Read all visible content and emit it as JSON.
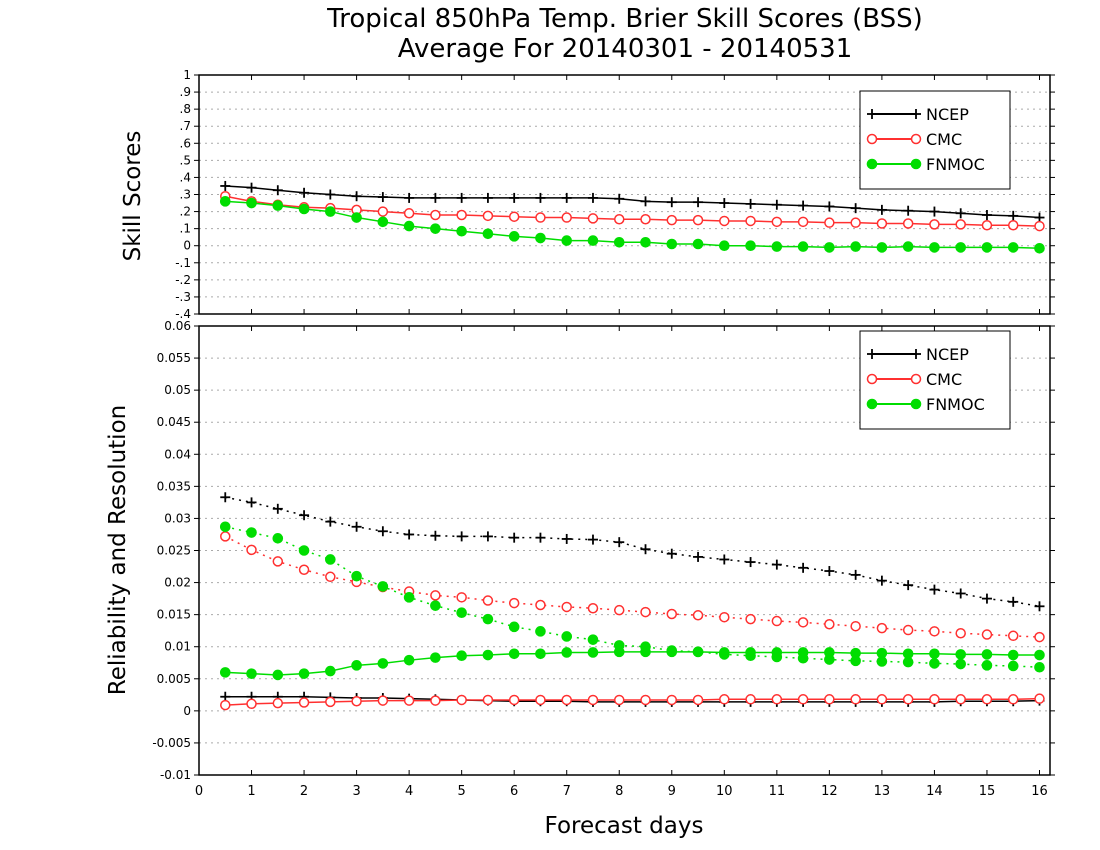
{
  "title_line1": "Tropical 850hPa Temp. Brier Skill Scores (BSS)",
  "title_line2": "Average For 20140301 - 20140531",
  "colors": {
    "NCEP": "#000000",
    "CMC": "#ff3030",
    "FNMOC": "#00dd00"
  },
  "chart_data": [
    {
      "type": "line",
      "ylabel": "Skill Scores",
      "xlabel": "",
      "xlim": [
        0,
        16.2
      ],
      "ylim": [
        -0.4,
        1
      ],
      "yticks": [
        -0.4,
        -0.3,
        -0.2,
        -0.1,
        0,
        0.1,
        0.2,
        0.3,
        0.4,
        0.5,
        0.6,
        0.7,
        0.8,
        0.9,
        1
      ],
      "grid": true,
      "legend": "top-right",
      "legend_entries": [
        "NCEP",
        "CMC",
        "FNMOC"
      ],
      "x": [
        0.5,
        1,
        1.5,
        2,
        2.5,
        3,
        3.5,
        4,
        4.5,
        5,
        5.5,
        6,
        6.5,
        7,
        7.5,
        8,
        8.5,
        9,
        9.5,
        10,
        10.5,
        11,
        11.5,
        12,
        12.5,
        13,
        13.5,
        14,
        14.5,
        15,
        15.5,
        16
      ],
      "series": [
        {
          "name": "NCEP",
          "marker": "plus",
          "style": "solid",
          "values": [
            0.35,
            0.34,
            0.325,
            0.31,
            0.3,
            0.29,
            0.285,
            0.28,
            0.28,
            0.28,
            0.28,
            0.28,
            0.28,
            0.28,
            0.28,
            0.275,
            0.26,
            0.255,
            0.255,
            0.25,
            0.245,
            0.24,
            0.235,
            0.23,
            0.22,
            0.21,
            0.205,
            0.2,
            0.19,
            0.18,
            0.175,
            0.165
          ]
        },
        {
          "name": "CMC",
          "marker": "open-circle",
          "style": "solid",
          "values": [
            0.29,
            0.26,
            0.24,
            0.225,
            0.22,
            0.21,
            0.2,
            0.19,
            0.18,
            0.18,
            0.175,
            0.17,
            0.165,
            0.165,
            0.16,
            0.155,
            0.155,
            0.15,
            0.15,
            0.145,
            0.145,
            0.14,
            0.14,
            0.135,
            0.135,
            0.13,
            0.13,
            0.125,
            0.125,
            0.12,
            0.12,
            0.115
          ]
        },
        {
          "name": "FNMOC",
          "marker": "filled-circle",
          "style": "solid",
          "values": [
            0.26,
            0.25,
            0.235,
            0.215,
            0.2,
            0.165,
            0.14,
            0.115,
            0.1,
            0.085,
            0.07,
            0.055,
            0.045,
            0.03,
            0.03,
            0.02,
            0.02,
            0.01,
            0.01,
            0.0,
            0.0,
            -0.005,
            -0.005,
            -0.01,
            -0.005,
            -0.01,
            -0.005,
            -0.01,
            -0.01,
            -0.01,
            -0.01,
            -0.015
          ]
        }
      ]
    },
    {
      "type": "line",
      "ylabel": "Reliability and Resolution",
      "xlabel": "Forecast days",
      "xlim": [
        0,
        16.2
      ],
      "ylim": [
        -0.01,
        0.06
      ],
      "yticks": [
        -0.01,
        -0.005,
        0,
        0.005,
        0.01,
        0.015,
        0.02,
        0.025,
        0.03,
        0.035,
        0.04,
        0.045,
        0.05,
        0.055,
        0.06
      ],
      "xticks": [
        0,
        1,
        2,
        3,
        4,
        5,
        6,
        7,
        8,
        9,
        10,
        11,
        12,
        13,
        14,
        15,
        16
      ],
      "grid": true,
      "legend": "top-right",
      "legend_entries": [
        "NCEP",
        "CMC",
        "FNMOC"
      ],
      "x": [
        0.5,
        1,
        1.5,
        2,
        2.5,
        3,
        3.5,
        4,
        4.5,
        5,
        5.5,
        6,
        6.5,
        7,
        7.5,
        8,
        8.5,
        9,
        9.5,
        10,
        10.5,
        11,
        11.5,
        12,
        12.5,
        13,
        13.5,
        14,
        14.5,
        15,
        15.5,
        16
      ],
      "series": [
        {
          "name": "NCEP",
          "component": "resolution",
          "marker": "plus",
          "style": "dotted",
          "values": [
            0.0333,
            0.0325,
            0.0315,
            0.0305,
            0.0295,
            0.0287,
            0.028,
            0.0275,
            0.0273,
            0.0272,
            0.0272,
            0.027,
            0.027,
            0.0268,
            0.0267,
            0.0263,
            0.0252,
            0.0245,
            0.024,
            0.0236,
            0.0232,
            0.0228,
            0.0223,
            0.0218,
            0.0212,
            0.0203,
            0.0196,
            0.0189,
            0.0183,
            0.0175,
            0.017,
            0.0163
          ]
        },
        {
          "name": "CMC",
          "component": "resolution",
          "marker": "open-circle",
          "style": "dotted",
          "values": [
            0.0272,
            0.0251,
            0.0233,
            0.022,
            0.0209,
            0.0201,
            0.0193,
            0.0186,
            0.018,
            0.0177,
            0.0172,
            0.0168,
            0.0165,
            0.0162,
            0.016,
            0.0157,
            0.0154,
            0.0151,
            0.0149,
            0.0146,
            0.0143,
            0.014,
            0.0138,
            0.0135,
            0.0132,
            0.0129,
            0.0126,
            0.0124,
            0.0121,
            0.0119,
            0.0117,
            0.0115
          ]
        },
        {
          "name": "FNMOC",
          "component": "resolution",
          "marker": "filled-circle",
          "style": "dotted",
          "values": [
            0.0287,
            0.0278,
            0.0269,
            0.025,
            0.0236,
            0.021,
            0.0194,
            0.0177,
            0.0164,
            0.0153,
            0.0143,
            0.0131,
            0.0124,
            0.0116,
            0.0111,
            0.0102,
            0.01,
            0.0094,
            0.0092,
            0.0088,
            0.0086,
            0.0084,
            0.0082,
            0.008,
            0.0078,
            0.0077,
            0.0076,
            0.0074,
            0.0073,
            0.0071,
            0.007,
            0.0068
          ]
        },
        {
          "name": "NCEP",
          "component": "reliability",
          "marker": "plus",
          "style": "solid",
          "values": [
            0.0022,
            0.0022,
            0.0022,
            0.0022,
            0.0021,
            0.002,
            0.002,
            0.0019,
            0.0018,
            0.0017,
            0.0016,
            0.0015,
            0.0015,
            0.0015,
            0.0014,
            0.0014,
            0.0014,
            0.0014,
            0.0014,
            0.0014,
            0.0014,
            0.0014,
            0.0014,
            0.0014,
            0.0014,
            0.0014,
            0.0014,
            0.0014,
            0.0015,
            0.0015,
            0.0015,
            0.0016
          ]
        },
        {
          "name": "CMC",
          "component": "reliability",
          "marker": "open-circle",
          "style": "solid",
          "values": [
            0.0009,
            0.0011,
            0.0012,
            0.0013,
            0.0014,
            0.0015,
            0.0016,
            0.0016,
            0.0016,
            0.0017,
            0.0017,
            0.0017,
            0.0017,
            0.0017,
            0.0017,
            0.0017,
            0.0017,
            0.0017,
            0.0017,
            0.0018,
            0.0018,
            0.0018,
            0.0018,
            0.0018,
            0.0018,
            0.0018,
            0.0018,
            0.0018,
            0.0018,
            0.0018,
            0.0018,
            0.0019
          ]
        },
        {
          "name": "FNMOC",
          "component": "reliability",
          "marker": "filled-circle",
          "style": "solid",
          "values": [
            0.006,
            0.0058,
            0.0056,
            0.0058,
            0.0062,
            0.0071,
            0.0074,
            0.0079,
            0.0083,
            0.0086,
            0.0087,
            0.0089,
            0.0089,
            0.0091,
            0.0091,
            0.0092,
            0.0092,
            0.0092,
            0.0092,
            0.0091,
            0.0091,
            0.0091,
            0.0091,
            0.0091,
            0.009,
            0.009,
            0.0089,
            0.0089,
            0.0088,
            0.0088,
            0.0087,
            0.0087
          ]
        }
      ]
    }
  ]
}
